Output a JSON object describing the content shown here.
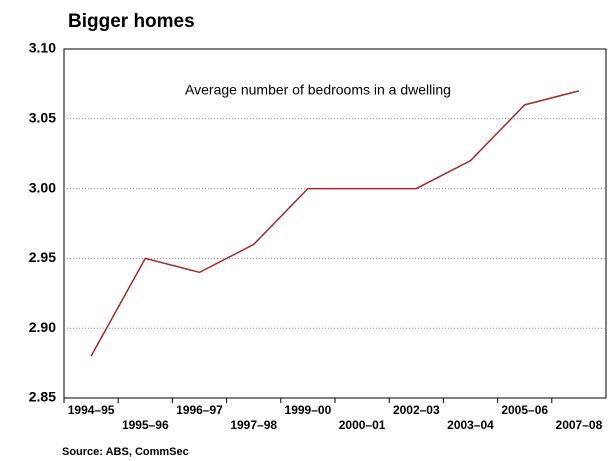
{
  "chart_data": {
    "type": "line",
    "title": "Bigger homes",
    "annotation": "Average number of bedrooms in a dwelling",
    "source": "Source: ABS, CommSec",
    "categories": [
      "1994–95",
      "1995–96",
      "1996–97",
      "1997–98",
      "1999–00",
      "2000–01",
      "2002–03",
      "2003–04",
      "2005–06",
      "2007–08"
    ],
    "values": [
      2.88,
      2.95,
      2.94,
      2.96,
      3.0,
      3.0,
      3.0,
      3.02,
      3.06,
      3.07
    ],
    "color": "#a52a2a",
    "ylim": [
      2.85,
      3.1
    ],
    "yticks": [
      2.85,
      {
        "value": 2.9,
        "label": "2.90"
      },
      2.95,
      {
        "value": 3.0,
        "label": "3.00"
      },
      3.05,
      {
        "value": 3.1,
        "label": "3.10"
      }
    ],
    "grid": true
  }
}
